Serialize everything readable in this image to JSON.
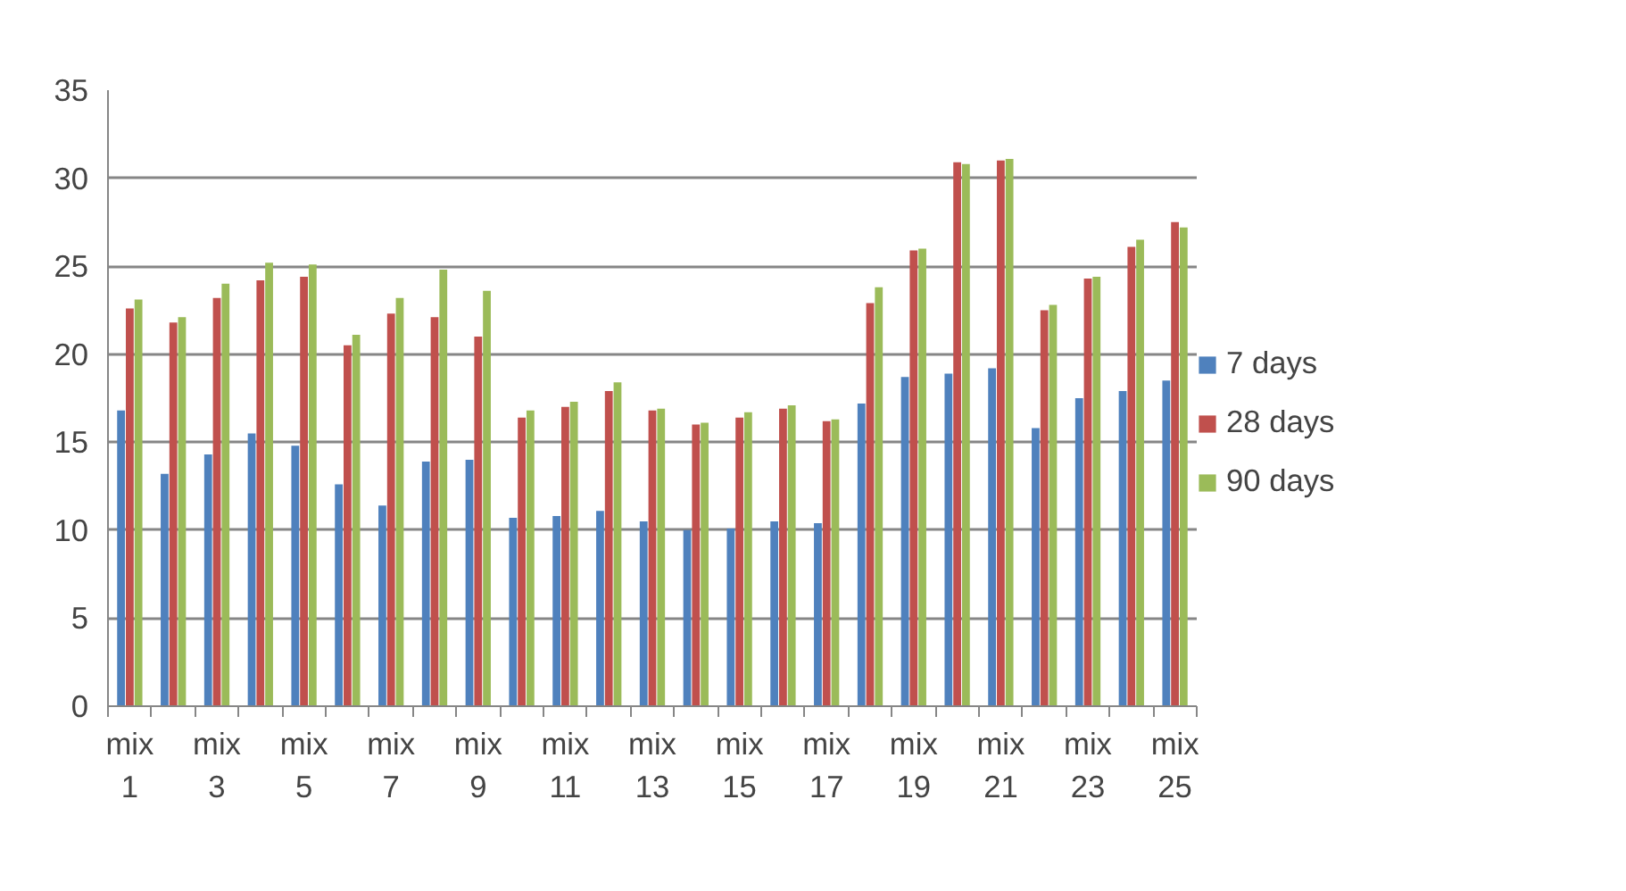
{
  "chart_data": {
    "type": "bar",
    "categories": [
      "mix 1",
      null,
      "mix 3",
      null,
      "mix 5",
      null,
      "mix 7",
      null,
      "mix 9",
      null,
      "mix 11",
      null,
      "mix 13",
      null,
      "mix 15",
      null,
      "mix 17",
      null,
      "mix 19",
      null,
      "mix 21",
      null,
      "mix 23",
      null,
      "mix 25"
    ],
    "series": [
      {
        "name": "7 days",
        "color": "#4f81bd",
        "values": [
          16.8,
          13.2,
          14.3,
          15.5,
          14.8,
          12.6,
          11.4,
          13.9,
          14.0,
          10.7,
          10.8,
          11.1,
          10.5,
          10.0,
          10.1,
          10.5,
          10.4,
          17.2,
          18.7,
          18.9,
          19.2,
          15.8,
          17.5,
          17.9,
          18.5
        ]
      },
      {
        "name": "28 days",
        "color": "#c0504d",
        "values": [
          22.6,
          21.8,
          23.2,
          24.2,
          24.4,
          20.5,
          22.3,
          22.1,
          21.0,
          16.4,
          17.0,
          17.9,
          16.8,
          16.0,
          16.4,
          16.9,
          16.2,
          22.9,
          25.9,
          30.9,
          31.0,
          22.5,
          24.3,
          26.1,
          27.5
        ]
      },
      {
        "name": "90 days",
        "color": "#9bbb59",
        "values": [
          23.1,
          22.1,
          24.0,
          25.2,
          25.1,
          21.1,
          23.2,
          24.8,
          23.6,
          16.8,
          17.3,
          18.4,
          16.9,
          16.1,
          16.7,
          17.1,
          16.3,
          23.8,
          26.0,
          30.8,
          31.1,
          22.8,
          24.4,
          26.5,
          27.2
        ]
      }
    ],
    "ylim": [
      0,
      35
    ],
    "yticks": [
      0,
      5,
      10,
      15,
      20,
      25,
      30,
      35
    ],
    "grid": "y",
    "legend": "right"
  }
}
